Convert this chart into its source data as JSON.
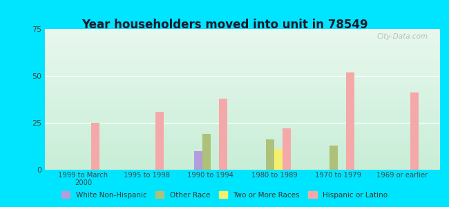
{
  "title": "Year householders moved into unit in 78549",
  "categories": [
    "1999 to March\n2000",
    "1995 to 1998",
    "1990 to 1994",
    "1980 to 1989",
    "1970 to 1979",
    "1969 or earlier"
  ],
  "series": {
    "White Non-Hispanic": [
      0,
      0,
      10,
      0,
      0,
      0
    ],
    "Other Race": [
      0,
      0,
      19,
      16,
      13,
      0
    ],
    "Two or More Races": [
      0,
      0,
      0,
      11,
      0,
      0
    ],
    "Hispanic or Latino": [
      25,
      31,
      38,
      22,
      52,
      41
    ]
  },
  "colors": {
    "White Non-Hispanic": "#b39ddb",
    "Other Race": "#adc178",
    "Two or More Races": "#f4f06e",
    "Hispanic or Latino": "#f4a8a8"
  },
  "ylim": [
    0,
    75
  ],
  "yticks": [
    0,
    25,
    50,
    75
  ],
  "outer_bg": "#00e5ff",
  "plot_bg_top": "#e8f8ee",
  "plot_bg_bottom": "#c8eed8",
  "watermark": "City-Data.com"
}
